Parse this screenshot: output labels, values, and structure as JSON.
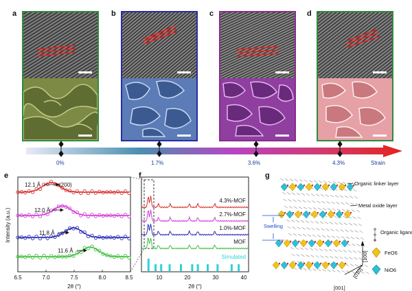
{
  "panel_labels": {
    "a": "a",
    "b": "b",
    "c": "c",
    "d": "d",
    "e": "e",
    "f": "f",
    "g": "g"
  },
  "colors": {
    "a": "#2e8b3c",
    "b": "#2b2ba8",
    "c": "#8a2a8c",
    "d": "#2e8b3c",
    "sem_a": "#8a9450",
    "sem_b": "#6f8fbf",
    "sem_c": "#a34fb8",
    "sem_d": "#e6a0a4"
  },
  "strain_bar": {
    "points": [
      "0%",
      "1.7%",
      "3.6%",
      "4.3%"
    ],
    "label": "Strain"
  },
  "panel_e": {
    "ylabel": "Intensity (a.u.)",
    "xlabel": "2θ (°)",
    "xticks": [
      "6.5",
      "7.0",
      "7.5",
      "8.0",
      "8.5"
    ],
    "annotations": [
      "12.1 Å",
      "(200)",
      "12.0 Å",
      "11.8 Å",
      "11.6 Å"
    ]
  },
  "panel_f": {
    "xlabel": "2θ (°)",
    "xticks": [
      "10",
      "20",
      "30",
      "40"
    ],
    "series": [
      "4.3%-MOF",
      "2.7%-MOF",
      "1.0%-MOF",
      "MOF",
      "Simulated"
    ]
  },
  "panel_g": {
    "labels": {
      "organic_linker": "Organic linker layer",
      "metal_oxide": "Metal oxide layer",
      "swelling": "Swelling",
      "organic_ligand": "Organic ligand",
      "feo6": "FeO6",
      "nio6": "NiO6",
      "dir100": "[100]",
      "dir010": "[010]",
      "dir001": "[001]"
    }
  },
  "chart_data": [
    {
      "type": "scatter",
      "title": "",
      "xlabel": "2θ (°)",
      "ylabel": "Intensity (a.u.)",
      "xlim": [
        6.5,
        8.5
      ],
      "series": [
        {
          "name": "12.1 Å",
          "peak_x": 7.1
        },
        {
          "name": "12.0 Å",
          "peak_x": 7.3
        },
        {
          "name": "11.8 Å",
          "peak_x": 7.5
        },
        {
          "name": "11.6 Å",
          "peak_x": 7.8
        }
      ]
    },
    {
      "type": "line",
      "xlabel": "2θ (°)",
      "xlim": [
        5,
        43
      ],
      "series": [
        {
          "name": "4.3%-MOF"
        },
        {
          "name": "2.7%-MOF"
        },
        {
          "name": "1.0%-MOF"
        },
        {
          "name": "MOF"
        },
        {
          "name": "Simulated",
          "sticks": [
            7.5,
            10,
            12,
            15,
            19,
            23,
            25,
            28.5,
            32,
            37,
            39.5
          ]
        }
      ]
    }
  ]
}
